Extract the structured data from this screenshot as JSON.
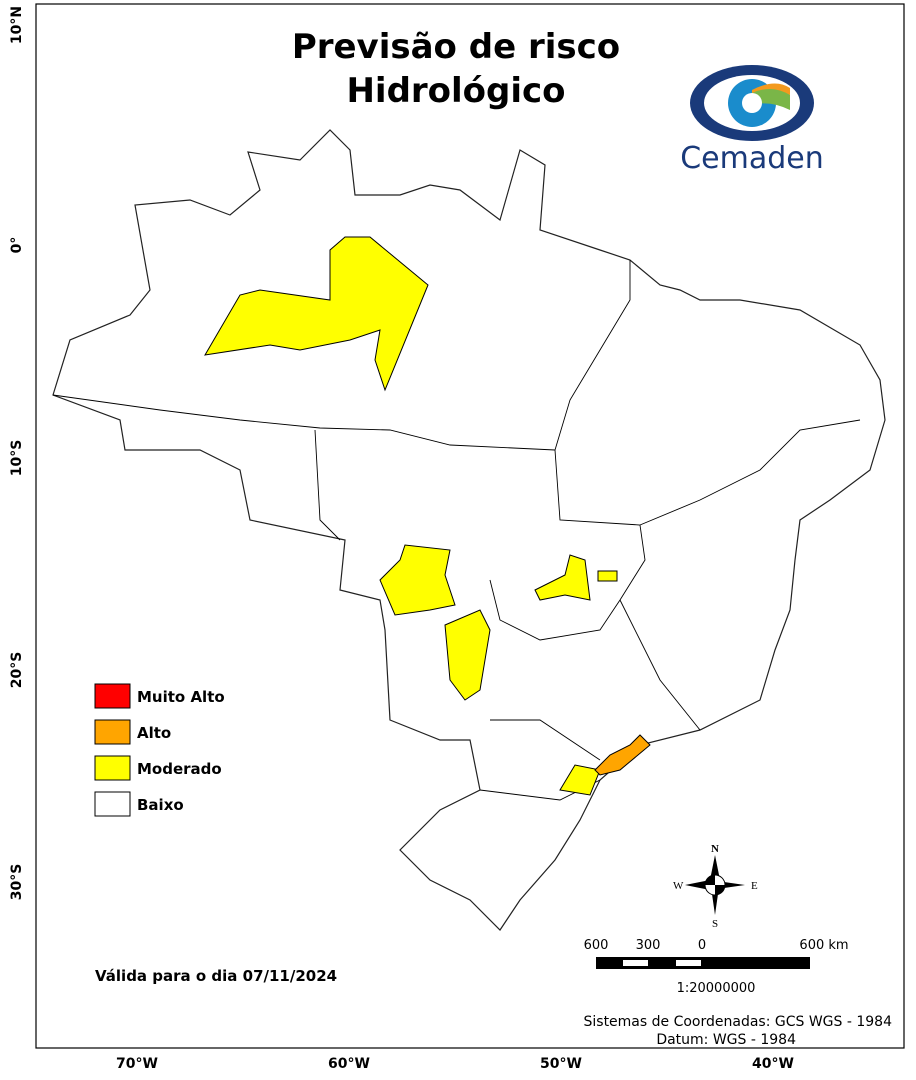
{
  "title": [
    "Previsão de risco",
    "Hidrológico"
  ],
  "logo": "Cemaden",
  "legend": [
    {
      "label": "Muito Alto",
      "color": "#ff0000"
    },
    {
      "label": "Alto",
      "color": "#ffa500"
    },
    {
      "label": "Moderado",
      "color": "#ffff00"
    },
    {
      "label": "Baixo",
      "color": "#ffffff"
    }
  ],
  "axes": {
    "left": [
      "10°N",
      "0°",
      "10°S",
      "20°S",
      "30°S"
    ],
    "bottom": [
      "70°W",
      "60°W",
      "50°W",
      "40°W"
    ]
  },
  "validity": "Válida para o dia 07/11/2024",
  "compass": {
    "north": "N",
    "south": "S",
    "east": "E",
    "west": "W"
  },
  "scale_bar": {
    "labels": [
      "600",
      "300",
      "0",
      "600 km"
    ],
    "ratio": "1:20000000"
  },
  "footer": [
    "Sistemas de Coordenadas: GCS WGS - 1984",
    "Datum: WGS - 1984"
  ]
}
